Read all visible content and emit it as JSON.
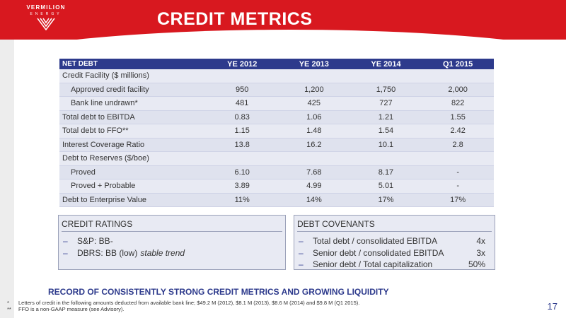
{
  "logo": {
    "name": "VERMILION",
    "sub": "ENERGY"
  },
  "title": "CREDIT METRICS",
  "table": {
    "headers": [
      "NET DEBT",
      "YE 2012",
      "YE 2013",
      "YE 2014",
      "Q1 2015"
    ],
    "rows": [
      {
        "label": "Credit Facility ($ millions)",
        "values": [
          "",
          "",
          "",
          ""
        ]
      },
      {
        "label": "Approved credit facility",
        "values": [
          "950",
          "1,200",
          "1,750",
          "2,000"
        ]
      },
      {
        "label": "Bank line undrawn*",
        "values": [
          "481",
          "425",
          "727",
          "822"
        ]
      },
      {
        "label": "Total debt to EBITDA",
        "values": [
          "0.83",
          "1.06",
          "1.21",
          "1.55"
        ]
      },
      {
        "label": "Total debt to FFO**",
        "values": [
          "1.15",
          "1.48",
          "1.54",
          "2.42"
        ]
      },
      {
        "label": "Interest Coverage Ratio",
        "values": [
          "13.8",
          "16.2",
          "10.1",
          "2.8"
        ]
      },
      {
        "label": "Debt to Reserves ($/boe)",
        "values": [
          "",
          "",
          "",
          ""
        ]
      },
      {
        "label": "Proved",
        "values": [
          "6.10",
          "7.68",
          "8.17",
          "-"
        ]
      },
      {
        "label": "Proved + Probable",
        "values": [
          "3.89",
          "4.99",
          "5.01",
          "-"
        ]
      },
      {
        "label": "Debt to Enterprise Value",
        "values": [
          "11%",
          "14%",
          "17%",
          "17%"
        ]
      }
    ]
  },
  "credit_ratings": {
    "title": "CREDIT RATINGS",
    "sp": "S&P:  BB-",
    "dbrs": "DBRS:  BB (low)",
    "dbrs_trend": "stable trend"
  },
  "debt_covenants": {
    "title": "DEBT COVENANTS",
    "items": [
      {
        "label": "Total debt / consolidated EBITDA",
        "value": "4x"
      },
      {
        "label": "Senior debt / consolidated EBITDA",
        "value": "3x"
      },
      {
        "label": "Senior debt / Total capitalization",
        "value": "50%"
      }
    ]
  },
  "tagline": "RECORD OF CONSISTENTLY STRONG CREDIT METRICS AND GROWING LIQUIDITY",
  "footnotes": [
    {
      "mark": "*",
      "text": "Letters of credit in the following amounts deducted from available bank line; $49.2 M (2012), $8.1 M (2013), $8.6 M (2014) and $9.8 M (Q1 2015)."
    },
    {
      "mark": "**",
      "text": "FFO is a non-GAAP measure (see Advisory)."
    }
  ],
  "page_number": "17",
  "colors": {
    "brand_red": "#d8181f",
    "navy": "#2d3a8c",
    "table_bg": "#e8eaf3"
  }
}
